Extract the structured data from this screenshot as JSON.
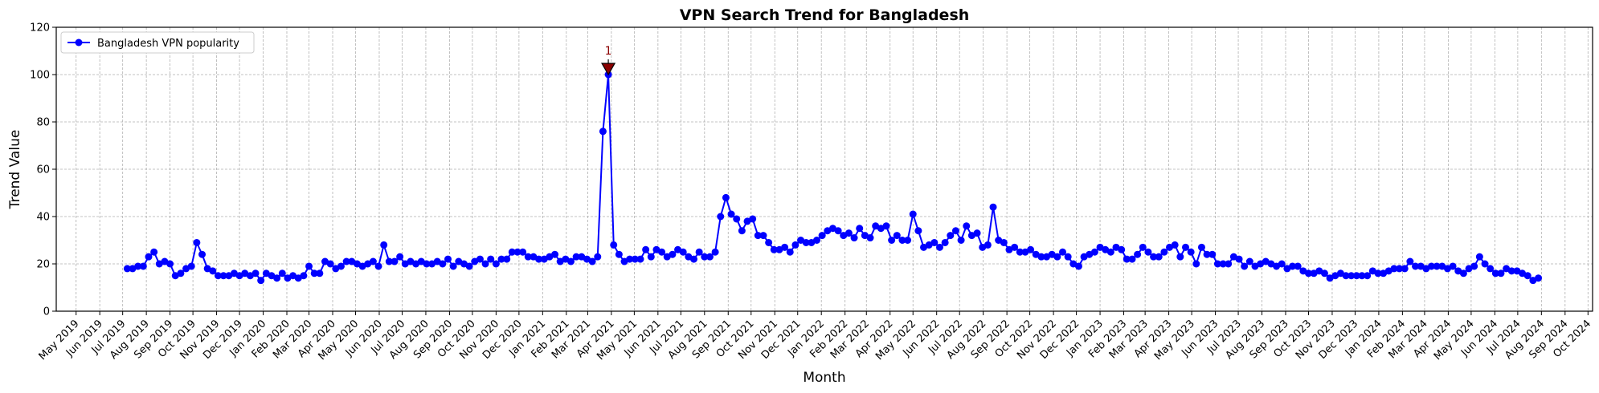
{
  "chart_data": {
    "type": "line",
    "title": "VPN Search Trend for Bangladesh",
    "xlabel": "Month",
    "ylabel": "Trend Value",
    "ylim": [
      0,
      120
    ],
    "xlim": [
      "2019-04-05",
      "2024-10-07"
    ],
    "yticks": [
      0,
      20,
      40,
      60,
      80,
      100,
      120
    ],
    "grid": true,
    "legend_position": "top-left",
    "colors": {
      "series": "#0000ff",
      "annotation": "#8b0000"
    },
    "xticks": [
      "2019-05-01",
      "2019-06-01",
      "2019-07-01",
      "2019-08-01",
      "2019-09-01",
      "2019-10-01",
      "2019-11-01",
      "2019-12-01",
      "2020-01-01",
      "2020-02-01",
      "2020-03-01",
      "2020-04-01",
      "2020-05-01",
      "2020-06-01",
      "2020-07-01",
      "2020-08-01",
      "2020-09-01",
      "2020-10-01",
      "2020-11-01",
      "2020-12-01",
      "2021-01-01",
      "2021-02-01",
      "2021-03-01",
      "2021-04-01",
      "2021-05-01",
      "2021-06-01",
      "2021-07-01",
      "2021-08-01",
      "2021-09-01",
      "2021-10-01",
      "2021-11-01",
      "2021-12-01",
      "2022-01-01",
      "2022-02-01",
      "2022-03-01",
      "2022-04-01",
      "2022-05-01",
      "2022-06-01",
      "2022-07-01",
      "2022-08-01",
      "2022-09-01",
      "2022-10-01",
      "2022-11-01",
      "2022-12-01",
      "2023-01-01",
      "2023-02-01",
      "2023-03-01",
      "2023-04-01",
      "2023-05-01",
      "2023-06-01",
      "2023-07-01",
      "2023-08-01",
      "2023-09-01",
      "2023-10-01",
      "2023-11-01",
      "2023-12-01",
      "2024-01-01",
      "2024-02-01",
      "2024-03-01",
      "2024-04-01",
      "2024-05-01",
      "2024-06-01",
      "2024-07-01",
      "2024-08-01",
      "2024-09-01",
      "2024-10-01"
    ],
    "xtick_labels": [
      "May 2019",
      "Jun 2019",
      "Jul 2019",
      "Aug 2019",
      "Sep 2019",
      "Oct 2019",
      "Nov 2019",
      "Dec 2019",
      "Jan 2020",
      "Feb 2020",
      "Mar 2020",
      "Apr 2020",
      "May 2020",
      "Jun 2020",
      "Jul 2020",
      "Aug 2020",
      "Sep 2020",
      "Oct 2020",
      "Nov 2020",
      "Dec 2020",
      "Jan 2021",
      "Feb 2021",
      "Mar 2021",
      "Apr 2021",
      "May 2021",
      "Jun 2021",
      "Jul 2021",
      "Aug 2021",
      "Sep 2021",
      "Oct 2021",
      "Nov 2021",
      "Dec 2021",
      "Jan 2022",
      "Feb 2022",
      "Mar 2022",
      "Apr 2022",
      "May 2022",
      "Jun 2022",
      "Jul 2022",
      "Aug 2022",
      "Sep 2022",
      "Oct 2022",
      "Nov 2022",
      "Dec 2022",
      "Jan 2023",
      "Feb 2023",
      "Mar 2023",
      "Apr 2023",
      "May 2023",
      "Jun 2023",
      "Jul 2023",
      "Aug 2023",
      "Sep 2023",
      "Oct 2023",
      "Nov 2023",
      "Dec 2023",
      "Jan 2024",
      "Feb 2024",
      "Mar 2024",
      "Apr 2024",
      "May 2024",
      "Jun 2024",
      "Jul 2024",
      "Aug 2024",
      "Sep 2024",
      "Oct 2024"
    ],
    "series": [
      {
        "name": "Bangladesh VPN popularity",
        "x": [
          "2019-07-07",
          "2019-07-14",
          "2019-07-21",
          "2019-07-28",
          "2019-08-04",
          "2019-08-11",
          "2019-08-18",
          "2019-08-25",
          "2019-09-01",
          "2019-09-08",
          "2019-09-15",
          "2019-09-22",
          "2019-09-29",
          "2019-10-06",
          "2019-10-13",
          "2019-10-20",
          "2019-10-27",
          "2019-11-03",
          "2019-11-10",
          "2019-11-17",
          "2019-11-24",
          "2019-12-01",
          "2019-12-08",
          "2019-12-15",
          "2019-12-22",
          "2019-12-29",
          "2020-01-05",
          "2020-01-12",
          "2020-01-19",
          "2020-01-26",
          "2020-02-02",
          "2020-02-09",
          "2020-02-16",
          "2020-02-23",
          "2020-03-01",
          "2020-03-08",
          "2020-03-15",
          "2020-03-22",
          "2020-03-29",
          "2020-04-05",
          "2020-04-12",
          "2020-04-19",
          "2020-04-26",
          "2020-05-03",
          "2020-05-10",
          "2020-05-17",
          "2020-05-24",
          "2020-05-31",
          "2020-06-07",
          "2020-06-14",
          "2020-06-21",
          "2020-06-28",
          "2020-07-05",
          "2020-07-12",
          "2020-07-19",
          "2020-07-26",
          "2020-08-02",
          "2020-08-09",
          "2020-08-16",
          "2020-08-23",
          "2020-08-30",
          "2020-09-06",
          "2020-09-13",
          "2020-09-20",
          "2020-09-27",
          "2020-10-04",
          "2020-10-11",
          "2020-10-18",
          "2020-10-25",
          "2020-11-01",
          "2020-11-08",
          "2020-11-15",
          "2020-11-22",
          "2020-11-29",
          "2020-12-06",
          "2020-12-13",
          "2020-12-20",
          "2020-12-27",
          "2021-01-03",
          "2021-01-10",
          "2021-01-17",
          "2021-01-24",
          "2021-01-31",
          "2021-02-07",
          "2021-02-14",
          "2021-02-21",
          "2021-02-28",
          "2021-03-07",
          "2021-03-14",
          "2021-03-21",
          "2021-03-28",
          "2021-04-04",
          "2021-04-11",
          "2021-04-18",
          "2021-04-25",
          "2021-05-02",
          "2021-05-09",
          "2021-05-16",
          "2021-05-23",
          "2021-05-30",
          "2021-06-06",
          "2021-06-13",
          "2021-06-20",
          "2021-06-27",
          "2021-07-04",
          "2021-07-11",
          "2021-07-18",
          "2021-07-25",
          "2021-08-01",
          "2021-08-08",
          "2021-08-15",
          "2021-08-22",
          "2021-08-29",
          "2021-09-05",
          "2021-09-12",
          "2021-09-19",
          "2021-09-26",
          "2021-10-03",
          "2021-10-10",
          "2021-10-17",
          "2021-10-24",
          "2021-10-31",
          "2021-11-07",
          "2021-11-14",
          "2021-11-21",
          "2021-11-28",
          "2021-12-05",
          "2021-12-12",
          "2021-12-19",
          "2021-12-26",
          "2022-01-02",
          "2022-01-09",
          "2022-01-16",
          "2022-01-23",
          "2022-01-30",
          "2022-02-06",
          "2022-02-13",
          "2022-02-20",
          "2022-02-27",
          "2022-03-06",
          "2022-03-13",
          "2022-03-20",
          "2022-03-27",
          "2022-04-03",
          "2022-04-10",
          "2022-04-17",
          "2022-04-24",
          "2022-05-01",
          "2022-05-08",
          "2022-05-15",
          "2022-05-22",
          "2022-05-29",
          "2022-06-05",
          "2022-06-12",
          "2022-06-19",
          "2022-06-26",
          "2022-07-03",
          "2022-07-10",
          "2022-07-17",
          "2022-07-24",
          "2022-07-31",
          "2022-08-07",
          "2022-08-14",
          "2022-08-21",
          "2022-08-28",
          "2022-09-04",
          "2022-09-11",
          "2022-09-18",
          "2022-09-25",
          "2022-10-02",
          "2022-10-09",
          "2022-10-16",
          "2022-10-23",
          "2022-10-30",
          "2022-11-06",
          "2022-11-13",
          "2022-11-20",
          "2022-11-27",
          "2022-12-04",
          "2022-12-11",
          "2022-12-18",
          "2022-12-25",
          "2023-01-01",
          "2023-01-08",
          "2023-01-15",
          "2023-01-22",
          "2023-01-29",
          "2023-02-05",
          "2023-02-12",
          "2023-02-19",
          "2023-02-26",
          "2023-03-05",
          "2023-03-12",
          "2023-03-19",
          "2023-03-26",
          "2023-04-02",
          "2023-04-09",
          "2023-04-16",
          "2023-04-23",
          "2023-04-30",
          "2023-05-07",
          "2023-05-14",
          "2023-05-21",
          "2023-05-28",
          "2023-06-04",
          "2023-06-11",
          "2023-06-18",
          "2023-06-25",
          "2023-07-02",
          "2023-07-09",
          "2023-07-16",
          "2023-07-23",
          "2023-07-30",
          "2023-08-06",
          "2023-08-13",
          "2023-08-20",
          "2023-08-27",
          "2023-09-03",
          "2023-09-10",
          "2023-09-17",
          "2023-09-24",
          "2023-10-01",
          "2023-10-08",
          "2023-10-15",
          "2023-10-22",
          "2023-10-29",
          "2023-11-05",
          "2023-11-12",
          "2023-11-19",
          "2023-11-26",
          "2023-12-03",
          "2023-12-10",
          "2023-12-17",
          "2023-12-24",
          "2023-12-31",
          "2024-01-07",
          "2024-01-14",
          "2024-01-21",
          "2024-01-28",
          "2024-02-04",
          "2024-02-11",
          "2024-02-18",
          "2024-02-25",
          "2024-03-03",
          "2024-03-10",
          "2024-03-17",
          "2024-03-24",
          "2024-03-31",
          "2024-04-07",
          "2024-04-14",
          "2024-04-21",
          "2024-04-28",
          "2024-05-05",
          "2024-05-12",
          "2024-05-19",
          "2024-05-26",
          "2024-06-02",
          "2024-06-09",
          "2024-06-16",
          "2024-06-23",
          "2024-06-30",
          "2024-07-07",
          "2024-07-14",
          "2024-07-21",
          "2024-07-28"
        ],
        "values": [
          18,
          18,
          19,
          19,
          23,
          25,
          20,
          21,
          20,
          15,
          16,
          18,
          19,
          29,
          24,
          18,
          17,
          15,
          15,
          15,
          16,
          15,
          16,
          15,
          16,
          13,
          16,
          15,
          14,
          16,
          14,
          15,
          14,
          15,
          19,
          16,
          16,
          21,
          20,
          18,
          19,
          21,
          21,
          20,
          19,
          20,
          21,
          19,
          28,
          21,
          21,
          23,
          20,
          21,
          20,
          21,
          20,
          20,
          21,
          20,
          22,
          19,
          21,
          20,
          19,
          21,
          22,
          20,
          22,
          20,
          22,
          22,
          25,
          25,
          25,
          23,
          23,
          22,
          22,
          23,
          24,
          21,
          22,
          21,
          23,
          23,
          22,
          21,
          23,
          76,
          100,
          28,
          24,
          21,
          22,
          22,
          22,
          26,
          23,
          26,
          25,
          23,
          24,
          26,
          25,
          23,
          22,
          25,
          23,
          23,
          25,
          40,
          48,
          41,
          39,
          34,
          38,
          39,
          32,
          32,
          29,
          26,
          26,
          27,
          25,
          28,
          30,
          29,
          29,
          30,
          32,
          34,
          35,
          34,
          32,
          33,
          31,
          35,
          32,
          31,
          36,
          35,
          36,
          30,
          32,
          30,
          30,
          41,
          34,
          27,
          28,
          29,
          27,
          29,
          32,
          34,
          30,
          36,
          32,
          33,
          27,
          28,
          44,
          30,
          29,
          26,
          27,
          25,
          25,
          26,
          24,
          23,
          23,
          24,
          23,
          25,
          23,
          20,
          19,
          23,
          24,
          25,
          27,
          26,
          25,
          27,
          26,
          22,
          22,
          24,
          27,
          25,
          23,
          23,
          25,
          27,
          28,
          23,
          27,
          25,
          20,
          27,
          24,
          24,
          20,
          20,
          20,
          23,
          22,
          19,
          21,
          19,
          20,
          21,
          20,
          19,
          20,
          18,
          19,
          19,
          17,
          16,
          16,
          17,
          16,
          14,
          15,
          16,
          15,
          15,
          15,
          15,
          15,
          17,
          16,
          16,
          17,
          18,
          18,
          18,
          21,
          19,
          19,
          18,
          19,
          19,
          19,
          18,
          19,
          17,
          16,
          18,
          19,
          23,
          20,
          18,
          16,
          16,
          18,
          17,
          17,
          16,
          15,
          13,
          14
        ]
      }
    ],
    "annotations": [
      {
        "label": "1",
        "x": "2021-03-28",
        "y": 100,
        "marker": "triangle-down"
      }
    ]
  }
}
